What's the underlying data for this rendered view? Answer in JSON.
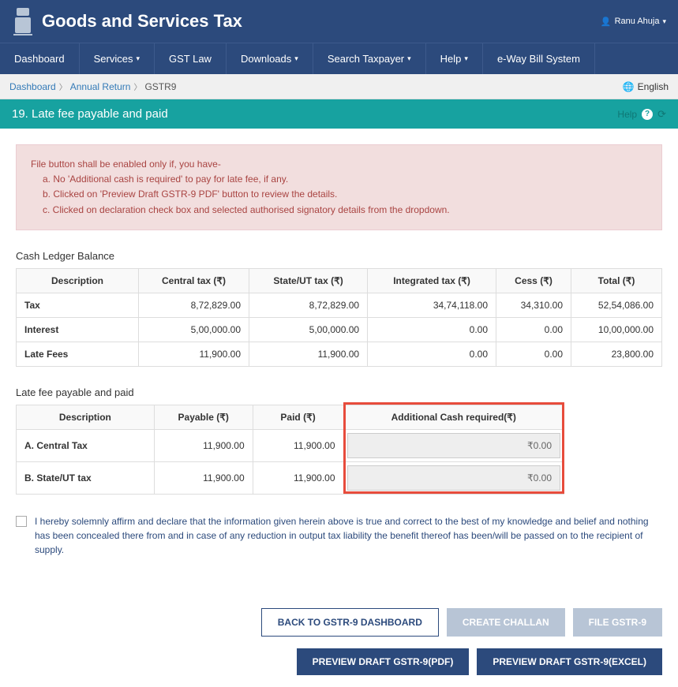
{
  "header": {
    "title": "Goods and Services Tax",
    "user": "Ranu Ahuja"
  },
  "nav": {
    "items": [
      {
        "label": "Dashboard",
        "dropdown": false
      },
      {
        "label": "Services",
        "dropdown": true
      },
      {
        "label": "GST Law",
        "dropdown": false
      },
      {
        "label": "Downloads",
        "dropdown": true
      },
      {
        "label": "Search Taxpayer",
        "dropdown": true
      },
      {
        "label": "Help",
        "dropdown": true
      },
      {
        "label": "e-Way Bill System",
        "dropdown": false
      }
    ]
  },
  "breadcrumb": {
    "items": [
      "Dashboard",
      "Annual Return",
      "GSTR9"
    ],
    "language": "English"
  },
  "section": {
    "title": "19. Late fee payable and paid",
    "help": "Help"
  },
  "alert": {
    "intro": "File button shall be enabled only if, you have-",
    "a": "a. No 'Additional cash is required' to pay for late fee, if any.",
    "b": "b. Clicked on 'Preview Draft GSTR-9 PDF' button to review the details.",
    "c": "c. Clicked on declaration check box and selected authorised signatory details from the dropdown."
  },
  "ledger": {
    "label": "Cash Ledger Balance",
    "headers": {
      "desc": "Description",
      "central": "Central tax (₹)",
      "state": "State/UT tax (₹)",
      "integrated": "Integrated tax (₹)",
      "cess": "Cess (₹)",
      "total": "Total (₹)"
    },
    "rows": [
      {
        "desc": "Tax",
        "central": "8,72,829.00",
        "state": "8,72,829.00",
        "integrated": "34,74,118.00",
        "cess": "34,310.00",
        "total": "52,54,086.00"
      },
      {
        "desc": "Interest",
        "central": "5,00,000.00",
        "state": "5,00,000.00",
        "integrated": "0.00",
        "cess": "0.00",
        "total": "10,00,000.00"
      },
      {
        "desc": "Late Fees",
        "central": "11,900.00",
        "state": "11,900.00",
        "integrated": "0.00",
        "cess": "0.00",
        "total": "23,800.00"
      }
    ]
  },
  "latefee": {
    "label": "Late fee payable and paid",
    "headers": {
      "desc": "Description",
      "payable": "Payable (₹)",
      "paid": "Paid (₹)",
      "additional": "Additional Cash required(₹)"
    },
    "rows": [
      {
        "desc": "A. Central Tax",
        "payable": "11,900.00",
        "paid": "11,900.00",
        "additional": "₹0.00"
      },
      {
        "desc": "B. State/UT tax",
        "payable": "11,900.00",
        "paid": "11,900.00",
        "additional": "₹0.00"
      }
    ]
  },
  "declaration": {
    "text": "I hereby solemnly affirm and declare that the information given herein above is true and correct to the best of my knowledge and belief and nothing has been concealed there from and in case of any reduction in output tax liability the benefit thereof has been/will be passed on to the recipient of supply."
  },
  "buttons": {
    "back": "BACK TO GSTR-9 DASHBOARD",
    "challan": "CREATE CHALLAN",
    "file": "FILE GSTR-9",
    "pdf": "PREVIEW DRAFT GSTR-9(PDF)",
    "excel": "PREVIEW DRAFT GSTR-9(EXCEL)"
  }
}
